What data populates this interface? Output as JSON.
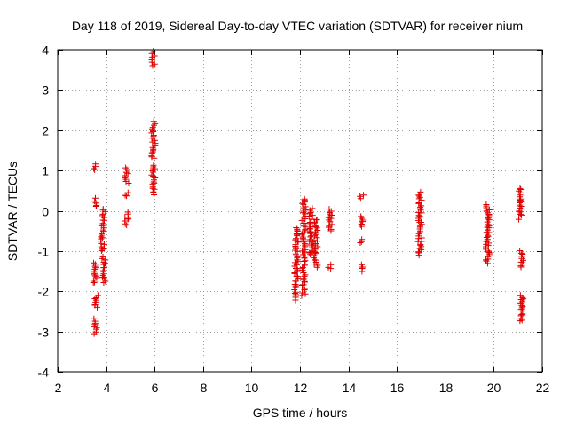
{
  "chart_data": {
    "type": "scatter",
    "title": "Day 118 of 2019, Sidereal Day-to-day VTEC variation (SDTVAR) for receiver nium",
    "xlabel": "GPS time / hours",
    "ylabel": "SDTVAR / TECUs",
    "xlim": [
      2,
      22
    ],
    "ylim": [
      -4,
      4
    ],
    "xticks": [
      2,
      4,
      6,
      8,
      10,
      12,
      14,
      16,
      18,
      20,
      22
    ],
    "yticks": [
      -4,
      -3,
      -2,
      -1,
      0,
      1,
      2,
      3,
      4
    ],
    "grid": true,
    "marker": "+",
    "color": "#e00000",
    "series": [
      {
        "name": "SDTVAR",
        "clusters": [
          {
            "x": 3.55,
            "y_range": [
              1.0,
              1.15
            ]
          },
          {
            "x": 3.6,
            "y_range": [
              0.1,
              0.3
            ]
          },
          {
            "x": 3.55,
            "y_range": [
              -1.8,
              -1.3
            ]
          },
          {
            "x": 3.6,
            "y_range": [
              -2.4,
              -2.1
            ]
          },
          {
            "x": 3.55,
            "y_range": [
              -3.05,
              -2.7
            ]
          },
          {
            "x": 3.9,
            "y_range": [
              -0.3,
              0.05
            ]
          },
          {
            "x": 3.85,
            "y_range": [
              -1.0,
              -0.35
            ]
          },
          {
            "x": 3.9,
            "y_range": [
              -1.8,
              -1.15
            ]
          },
          {
            "x": 4.85,
            "y_range": [
              0.7,
              1.05
            ]
          },
          {
            "x": 4.85,
            "y_range": [
              0.35,
              0.45
            ]
          },
          {
            "x": 4.85,
            "y_range": [
              -0.35,
              -0.05
            ]
          },
          {
            "x": 5.95,
            "y_range": [
              3.6,
              3.95
            ]
          },
          {
            "x": 5.95,
            "y_range": [
              1.3,
              2.2
            ]
          },
          {
            "x": 5.95,
            "y_range": [
              0.4,
              1.15
            ]
          },
          {
            "x": 11.85,
            "y_range": [
              -2.2,
              -0.4
            ]
          },
          {
            "x": 12.15,
            "y_range": [
              -2.1,
              0.3
            ]
          },
          {
            "x": 12.45,
            "y_range": [
              -1.1,
              0.05
            ]
          },
          {
            "x": 12.65,
            "y_range": [
              -1.4,
              -0.2
            ]
          },
          {
            "x": 13.25,
            "y_range": [
              -0.5,
              0.05
            ]
          },
          {
            "x": 13.25,
            "y_range": [
              -1.45,
              -1.35
            ]
          },
          {
            "x": 14.55,
            "y_range": [
              0.3,
              0.4
            ]
          },
          {
            "x": 14.55,
            "y_range": [
              -0.4,
              -0.15
            ]
          },
          {
            "x": 14.55,
            "y_range": [
              -0.8,
              -0.7
            ]
          },
          {
            "x": 14.55,
            "y_range": [
              -1.5,
              -1.35
            ]
          },
          {
            "x": 16.95,
            "y_range": [
              -1.1,
              0.45
            ]
          },
          {
            "x": 19.75,
            "y_range": [
              -1.3,
              0.15
            ]
          },
          {
            "x": 21.1,
            "y_range": [
              -0.2,
              0.55
            ]
          },
          {
            "x": 21.15,
            "y_range": [
              -1.4,
              -1.0
            ]
          },
          {
            "x": 21.15,
            "y_range": [
              -2.75,
              -2.1
            ]
          }
        ]
      }
    ]
  }
}
